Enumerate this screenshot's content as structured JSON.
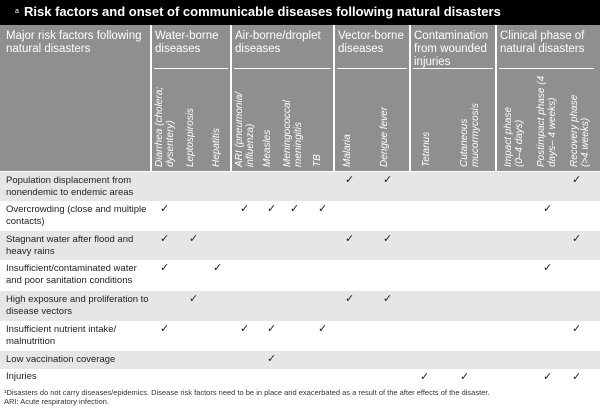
{
  "title": {
    "superscript": "a",
    "text": "Risk factors and onset of communicable diseases following natural disasters"
  },
  "header": {
    "first_column": "Major risk factors following natural disasters",
    "groups": [
      {
        "label": "Water-borne diseases",
        "columns": [
          "Diarrhea (cholera; dysentery)",
          "Leptospirosis",
          "Hepatitis"
        ]
      },
      {
        "label": "Air-borne/droplet diseases",
        "columns": [
          "ARI (pneumonia/ influenza)",
          "Measles",
          "Meningococcal meningitis",
          "TB"
        ]
      },
      {
        "label": "Vector-borne diseases",
        "columns": [
          "Malaria",
          "Dengue fever"
        ]
      },
      {
        "label": "Contamination from wounded injuries",
        "columns": [
          "Tetanus",
          "Cutaneous mucormycosis"
        ]
      },
      {
        "label": "Clinical phase of natural disasters",
        "columns": [
          "Impact phase (0–4 days)",
          "Postimpact phase (4 days– 4 weeks)",
          "Recovery phase (>4 weeks)"
        ]
      }
    ]
  },
  "check_symbol": "✓",
  "rows": [
    {
      "label": "Population displacement from nonendemic to endemic areas",
      "checks": [
        7,
        8,
        13
      ]
    },
    {
      "label": "Overcrowding (close and multiple contacts)",
      "checks": [
        0,
        3,
        4,
        5,
        6,
        12
      ]
    },
    {
      "label": "Stagnant water after flood and heavy rains",
      "checks": [
        0,
        1,
        7,
        8,
        13
      ]
    },
    {
      "label": "Insufficient/contaminated water and poor sanitation conditions",
      "checks": [
        0,
        2,
        12
      ]
    },
    {
      "label": "High exposure and proliferation to disease vectors",
      "checks": [
        1,
        7,
        8
      ]
    },
    {
      "label": "Insufficient nutrient intake/ malnutrition",
      "checks": [
        0,
        3,
        4,
        6,
        13
      ]
    },
    {
      "label": "Low vaccination coverage",
      "checks": [
        4
      ]
    },
    {
      "label": "Injuries",
      "checks": [
        9,
        10,
        12,
        13
      ]
    }
  ],
  "footnotes": [
    "¹Disasters do not carry diseases/epidemics. Disease risk factors need to be in place and exacerbated as a result of the after effects of the disaster.",
    "ARI: Acute respiratory infection."
  ]
}
